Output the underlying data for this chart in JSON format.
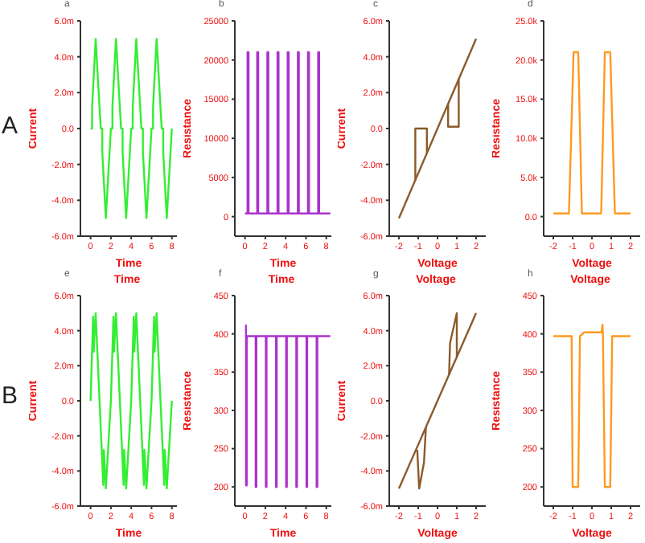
{
  "chart_data": [
    {
      "type": "line",
      "title": "a",
      "ylabel": "Current",
      "xlabel": "Time",
      "annotations": [
        "A"
      ],
      "xlim": [
        -1,
        8.5
      ],
      "xticks": [
        0,
        2,
        4,
        6,
        8
      ],
      "ylim": [
        -6,
        6
      ],
      "yticks": [
        {
          "value": -6,
          "label": "-6.0m"
        },
        {
          "value": -4,
          "label": "-4.0m"
        },
        {
          "value": -2,
          "label": "-2.0m"
        },
        {
          "value": 0,
          "label": "0.0"
        },
        {
          "value": 2,
          "label": "2.0m"
        },
        {
          "value": 4,
          "label": "4.0m"
        },
        {
          "value": 6,
          "label": "6.0m"
        }
      ],
      "series": [
        {
          "color": "#33ee33",
          "x": [
            0,
            0.15,
            0.15,
            0.5,
            1,
            1.15,
            1.15,
            1.5,
            2,
            2.15,
            2.15,
            2.5,
            3,
            3.15,
            3.15,
            3.5,
            4,
            4.15,
            4.15,
            4.5,
            5,
            5.15,
            5.15,
            5.5,
            6,
            6.15,
            6.15,
            6.5,
            7,
            7.15,
            7.15,
            7.5,
            8
          ],
          "values": [
            0,
            0,
            1.2,
            5,
            0,
            0,
            -1.3,
            -5,
            0,
            0,
            1.2,
            5,
            0,
            0,
            -1.3,
            -5,
            0,
            0,
            1.2,
            5,
            0,
            0,
            -1.3,
            -5,
            0,
            0,
            1.2,
            5,
            0,
            0,
            -1.3,
            -5,
            0
          ]
        }
      ]
    },
    {
      "type": "line",
      "title": "b",
      "ylabel": "Resistance",
      "xlabel": "Time",
      "xlim": [
        -1,
        8.5
      ],
      "xticks": [
        0,
        2,
        4,
        6,
        8
      ],
      "ylim": [
        -2500,
        25000
      ],
      "yticks": [
        0,
        5000,
        10000,
        15000,
        20000,
        25000
      ],
      "series": [
        {
          "color": "#aa33cc",
          "x": [
            0,
            0.25,
            0.25,
            0.35,
            0.35,
            1.2,
            1.2,
            1.3,
            1.3,
            2.2,
            2.2,
            2.3,
            2.3,
            3.2,
            3.2,
            3.3,
            3.3,
            4.2,
            4.2,
            4.3,
            4.3,
            5.2,
            5.2,
            5.3,
            5.3,
            6.2,
            6.2,
            6.3,
            6.3,
            7.2,
            7.2,
            7.3,
            7.3,
            8.4
          ],
          "values": [
            400,
            400,
            21000,
            21000,
            400,
            400,
            21000,
            21000,
            400,
            400,
            21000,
            21000,
            400,
            400,
            21000,
            21000,
            400,
            400,
            21000,
            21000,
            400,
            400,
            21000,
            21000,
            400,
            400,
            21000,
            21000,
            400,
            400,
            21000,
            21000,
            400,
            400
          ]
        }
      ]
    },
    {
      "type": "line",
      "title": "c",
      "ylabel": "Current",
      "xlabel": "Voltage",
      "xlim": [
        -2.5,
        2.5
      ],
      "xticks": [
        -2,
        -1,
        0,
        1,
        2
      ],
      "ylim": [
        -6,
        6
      ],
      "yticks": [
        {
          "value": -6,
          "label": "-6.0m"
        },
        {
          "value": -4,
          "label": "-4.0m"
        },
        {
          "value": -2,
          "label": "-2.0m"
        },
        {
          "value": 0,
          "label": "0.0"
        },
        {
          "value": 2,
          "label": "2.0m"
        },
        {
          "value": 4,
          "label": "4.0m"
        },
        {
          "value": 6,
          "label": "6.0m"
        }
      ],
      "series": [
        {
          "color": "#8b5a2b",
          "x": [
            -2,
            2
          ],
          "values": [
            -5,
            5
          ]
        },
        {
          "color": "#8b5a2b",
          "x": [
            0.55,
            0.55,
            1.1,
            1.1
          ],
          "values": [
            1.4,
            0.1,
            0.1,
            2.8
          ]
        },
        {
          "color": "#8b5a2b",
          "x": [
            -1.15,
            -1.15,
            -0.55,
            -0.55
          ],
          "values": [
            -2.9,
            0,
            0,
            -1.4
          ]
        }
      ]
    },
    {
      "type": "line",
      "title": "d",
      "ylabel": "Resistance",
      "xlabel": "Voltage",
      "xlim": [
        -2.5,
        2.5
      ],
      "xticks": [
        -2,
        -1,
        0,
        1,
        2
      ],
      "ylim": [
        -2500,
        25000
      ],
      "yticks": [
        {
          "value": 0,
          "label": "0.0"
        },
        {
          "value": 5000,
          "label": "5.0k"
        },
        {
          "value": 10000,
          "label": "10.0k"
        },
        {
          "value": 15000,
          "label": "15.0k"
        },
        {
          "value": 20000,
          "label": "20.0k"
        },
        {
          "value": 25000,
          "label": "25.0k"
        }
      ],
      "series": [
        {
          "color": "#ff9922",
          "x": [
            -2,
            -1.19,
            -0.95,
            -0.71,
            -0.52,
            0.48,
            0.67,
            0.95,
            1.19,
            2
          ],
          "values": [
            400,
            400,
            21000,
            21000,
            400,
            400,
            21000,
            21000,
            400,
            400
          ]
        }
      ]
    },
    {
      "type": "line",
      "title": "e",
      "subtitle": "Time",
      "ylabel": "Current",
      "xlabel": "Time",
      "annotations": [
        "B"
      ],
      "xlim": [
        -1,
        8.5
      ],
      "xticks": [
        0,
        2,
        4,
        6,
        8
      ],
      "ylim": [
        -6,
        6
      ],
      "yticks": [
        {
          "value": -6,
          "label": "-6.0m"
        },
        {
          "value": -4,
          "label": "-4.0m"
        },
        {
          "value": -2,
          "label": "-2.0m"
        },
        {
          "value": 0,
          "label": "0.0"
        },
        {
          "value": 2,
          "label": "2.0m"
        },
        {
          "value": 4,
          "label": "4.0m"
        },
        {
          "value": 6,
          "label": "6.0m"
        }
      ],
      "series": [
        {
          "color": "#33ee33",
          "x": [
            0,
            0.25,
            0.3,
            0.5,
            1.25,
            1.3,
            1.5,
            2,
            2.25,
            2.3,
            2.5,
            3.25,
            3.3,
            3.5,
            4,
            4.25,
            4.3,
            4.5,
            5.25,
            5.3,
            5.5,
            6,
            6.25,
            6.3,
            6.5,
            7.25,
            7.3,
            7.5,
            8
          ],
          "values": [
            0,
            4.8,
            2.8,
            5,
            -4.8,
            -2.8,
            -5,
            0,
            4.8,
            2.8,
            5,
            -4.8,
            -2.8,
            -5,
            0,
            4.8,
            2.8,
            5,
            -4.8,
            -2.8,
            -5,
            0,
            4.8,
            2.8,
            5,
            -4.8,
            -2.8,
            -5,
            0
          ]
        }
      ]
    },
    {
      "type": "line",
      "title": "f",
      "subtitle": "Time",
      "ylabel": "Resistance",
      "xlabel": "Time",
      "xlim": [
        -1,
        8.5
      ],
      "xticks": [
        0,
        2,
        4,
        6,
        8
      ],
      "ylim": [
        175,
        450
      ],
      "yticks": [
        200,
        250,
        300,
        350,
        400,
        450
      ],
      "series": [
        {
          "color": "#aa33cc",
          "x": [
            0.1,
            0.1,
            0.17,
            0.17,
            1.05,
            1.05,
            1.12,
            1.12,
            2.05,
            2.05,
            2.12,
            2.12,
            3.05,
            3.05,
            3.12,
            3.12,
            4.05,
            4.05,
            4.12,
            4.12,
            5.05,
            5.05,
            5.12,
            5.12,
            6.05,
            6.05,
            6.12,
            6.12,
            7.05,
            7.05,
            7.12,
            7.12,
            8.4
          ],
          "values": [
            412,
            202,
            202,
            397,
            397,
            200,
            200,
            397,
            397,
            200,
            200,
            397,
            397,
            200,
            200,
            397,
            397,
            200,
            200,
            397,
            397,
            200,
            200,
            397,
            397,
            200,
            200,
            397,
            397,
            200,
            200,
            397,
            397
          ]
        }
      ]
    },
    {
      "type": "line",
      "title": "g",
      "subtitle": "Voltage",
      "ylabel": "Current",
      "xlabel": "Voltage",
      "xlim": [
        -2.5,
        2.5
      ],
      "xticks": [
        -2,
        -1,
        0,
        1,
        2
      ],
      "ylim": [
        -6,
        6
      ],
      "yticks": [
        {
          "value": -6,
          "label": "-6.0m"
        },
        {
          "value": -4,
          "label": "-4.0m"
        },
        {
          "value": -2,
          "label": "-2.0m"
        },
        {
          "value": 0,
          "label": "0.0"
        },
        {
          "value": 2,
          "label": "2.0m"
        },
        {
          "value": 4,
          "label": "4.0m"
        },
        {
          "value": 6,
          "label": "6.0m"
        }
      ],
      "series": [
        {
          "color": "#8b5a2b",
          "x": [
            -2,
            2
          ],
          "values": [
            -5,
            5
          ]
        },
        {
          "color": "#8b5a2b",
          "x": [
            0.6,
            0.65,
            1,
            1
          ],
          "values": [
            1.5,
            3.3,
            5,
            2.5
          ]
        },
        {
          "color": "#8b5a2b",
          "x": [
            -1.05,
            -0.95,
            -0.7,
            -0.6
          ],
          "values": [
            -2.8,
            -5,
            -3.5,
            -1.5
          ]
        }
      ]
    },
    {
      "type": "line",
      "title": "h",
      "subtitle": "Voltage",
      "ylabel": "Resistance",
      "xlabel": "Voltage",
      "xlim": [
        -2.5,
        2.5
      ],
      "xticks": [
        -2,
        -1,
        0,
        1,
        2
      ],
      "ylim": [
        175,
        450
      ],
      "yticks": [
        200,
        250,
        300,
        350,
        400,
        450
      ],
      "series": [
        {
          "color": "#ff9922",
          "x": [
            -2,
            -1.05,
            -1,
            -0.71,
            -0.62,
            -0.4,
            0.5,
            0.55,
            0.57,
            0.67,
            0.95,
            1.05,
            2
          ],
          "values": [
            397,
            397,
            200,
            200,
            397,
            402,
            402,
            412,
            397,
            200,
            200,
            397,
            397
          ]
        }
      ]
    }
  ]
}
